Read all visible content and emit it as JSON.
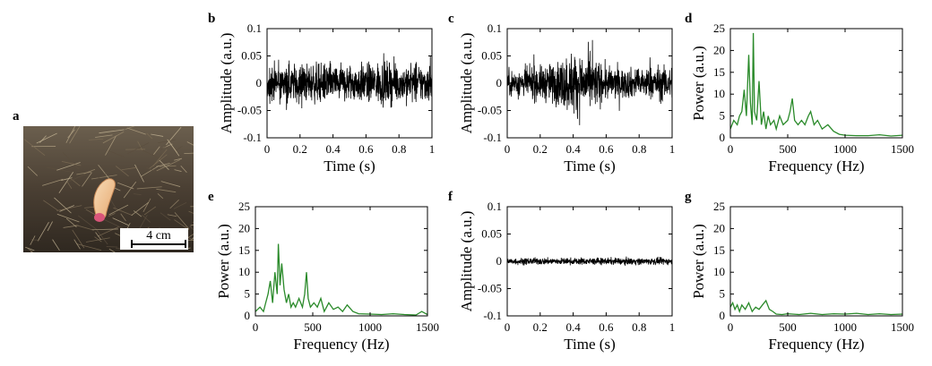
{
  "photo": {
    "letter": "a",
    "scale_label": "4 cm",
    "colors": {
      "soil": "#4a3f33",
      "root": "#f2c79a",
      "tip": "#d9557a",
      "text_bg": "#ffffff"
    }
  },
  "chart_data": [
    {
      "panel": "b",
      "type": "line",
      "signal": "noise_uniform",
      "xlabel": "Time (s)",
      "ylabel": "Amplitude (a.u.)",
      "xlim": [
        0,
        1
      ],
      "ylim": [
        -0.1,
        0.1
      ],
      "xticks": [
        "0",
        "0.2",
        "0.4",
        "0.6",
        "0.8",
        "1"
      ],
      "yticks": [
        "0.1",
        "0.05",
        "0",
        "-0.05",
        "-0.1"
      ],
      "color": "#000000",
      "series": [
        {
          "name": "waveform",
          "envelope": [
            0.045,
            0.045,
            0.045,
            0.045,
            0.045,
            0.045,
            0.045,
            0.05,
            0.045,
            0.045,
            0.045
          ],
          "mean": 0
        }
      ]
    },
    {
      "panel": "c",
      "type": "line",
      "signal": "noise_burst",
      "xlabel": "Time (s)",
      "ylabel": "Amplitude (a.u.)",
      "xlim": [
        0,
        1
      ],
      "ylim": [
        -0.1,
        0.1
      ],
      "xticks": [
        "0",
        "0.2",
        "0.4",
        "0.6",
        "0.8",
        "1"
      ],
      "yticks": [
        "0.1",
        "0.05",
        "0",
        "-0.05",
        "-0.1"
      ],
      "color": "#000000",
      "series": [
        {
          "name": "waveform",
          "envelope": [
            0.03,
            0.035,
            0.04,
            0.05,
            0.075,
            0.065,
            0.04,
            0.035,
            0.035,
            0.04,
            0.04
          ],
          "mean": 0
        }
      ]
    },
    {
      "panel": "d",
      "type": "line",
      "xlabel": "Frequency (Hz)",
      "ylabel": "Power (a.u.)",
      "xlim": [
        0,
        1500
      ],
      "ylim": [
        0,
        25
      ],
      "xticks": [
        "0",
        "500",
        "1000",
        "1500"
      ],
      "yticks": [
        "25",
        "20",
        "15",
        "10",
        "5",
        "0"
      ],
      "color": "#2a8a2a",
      "series": [
        {
          "name": "spectrum",
          "x": [
            0,
            30,
            60,
            80,
            100,
            120,
            140,
            160,
            175,
            190,
            200,
            210,
            230,
            250,
            270,
            290,
            310,
            330,
            350,
            380,
            400,
            430,
            460,
            500,
            520,
            540,
            560,
            590,
            620,
            650,
            680,
            700,
            730,
            760,
            800,
            850,
            900,
            950,
            1000,
            1100,
            1200,
            1300,
            1400,
            1500
          ],
          "y": [
            2,
            4,
            3,
            5,
            6,
            11,
            5,
            19,
            8,
            3,
            24,
            6,
            4,
            13,
            3,
            6,
            2,
            5,
            3,
            4,
            2,
            5,
            3,
            4,
            6,
            9,
            4,
            3,
            4,
            3,
            5,
            6,
            3,
            4,
            2,
            3,
            1.5,
            0.8,
            0.6,
            0.5,
            0.5,
            0.7,
            0.4,
            0.6
          ]
        }
      ]
    },
    {
      "panel": "e",
      "type": "line",
      "xlabel": "Frequency (Hz)",
      "ylabel": "Power (a.u.)",
      "xlim": [
        0,
        1500
      ],
      "ylim": [
        0,
        25
      ],
      "xticks": [
        "0",
        "500",
        "1000",
        "1500"
      ],
      "yticks": [
        "25",
        "20",
        "15",
        "10",
        "5",
        "0"
      ],
      "color": "#2a8a2a",
      "series": [
        {
          "name": "spectrum",
          "x": [
            0,
            40,
            70,
            90,
            110,
            130,
            150,
            170,
            190,
            200,
            215,
            230,
            250,
            270,
            290,
            310,
            330,
            350,
            380,
            410,
            430,
            445,
            460,
            480,
            510,
            540,
            570,
            600,
            640,
            680,
            720,
            760,
            800,
            850,
            900,
            1000,
            1100,
            1200,
            1300,
            1400,
            1450,
            1500
          ],
          "y": [
            1,
            2,
            1,
            3,
            5,
            8,
            3,
            10,
            5,
            16.5,
            7,
            12,
            6,
            3,
            5,
            2,
            3,
            2,
            4,
            2,
            5,
            10,
            4,
            2,
            3,
            2,
            4,
            1,
            3,
            1.5,
            2,
            1,
            2.5,
            1,
            0.5,
            0.4,
            0.3,
            0.5,
            0.3,
            0.2,
            1,
            0.3
          ]
        }
      ]
    },
    {
      "panel": "f",
      "type": "line",
      "signal": "noise_low",
      "xlabel": "Time (s)",
      "ylabel": "Amplitude (a.u.)",
      "xlim": [
        0,
        1
      ],
      "ylim": [
        -0.1,
        0.1
      ],
      "xticks": [
        "0",
        "0.2",
        "0.4",
        "0.6",
        "0.8",
        "1"
      ],
      "yticks": [
        "0.1",
        "0.05",
        "0",
        "-0.05",
        "-0.1"
      ],
      "color": "#000000",
      "series": [
        {
          "name": "waveform",
          "envelope": [
            0.008,
            0.008,
            0.008,
            0.008,
            0.008,
            0.008,
            0.008,
            0.008,
            0.008,
            0.008,
            0.008
          ],
          "mean": 0
        }
      ]
    },
    {
      "panel": "g",
      "type": "line",
      "xlabel": "Frequency (Hz)",
      "ylabel": "Power (a.u.)",
      "xlim": [
        0,
        1500
      ],
      "ylim": [
        0,
        25
      ],
      "xticks": [
        "0",
        "500",
        "1000",
        "1500"
      ],
      "yticks": [
        "25",
        "20",
        "15",
        "10",
        "5",
        "0"
      ],
      "color": "#2a8a2a",
      "series": [
        {
          "name": "spectrum",
          "x": [
            0,
            20,
            40,
            60,
            80,
            100,
            130,
            160,
            190,
            220,
            250,
            280,
            310,
            340,
            370,
            400,
            450,
            500,
            600,
            700,
            800,
            900,
            1000,
            1100,
            1200,
            1300,
            1400,
            1500
          ],
          "y": [
            2,
            3,
            1.5,
            2.5,
            1,
            2.5,
            1.5,
            3,
            1,
            2,
            1.5,
            2.5,
            3.5,
            1.5,
            1,
            0.4,
            0.3,
            0.5,
            0.3,
            0.6,
            0.3,
            0.5,
            0.4,
            0.6,
            0.3,
            0.5,
            0.3,
            0.4
          ]
        }
      ]
    }
  ]
}
